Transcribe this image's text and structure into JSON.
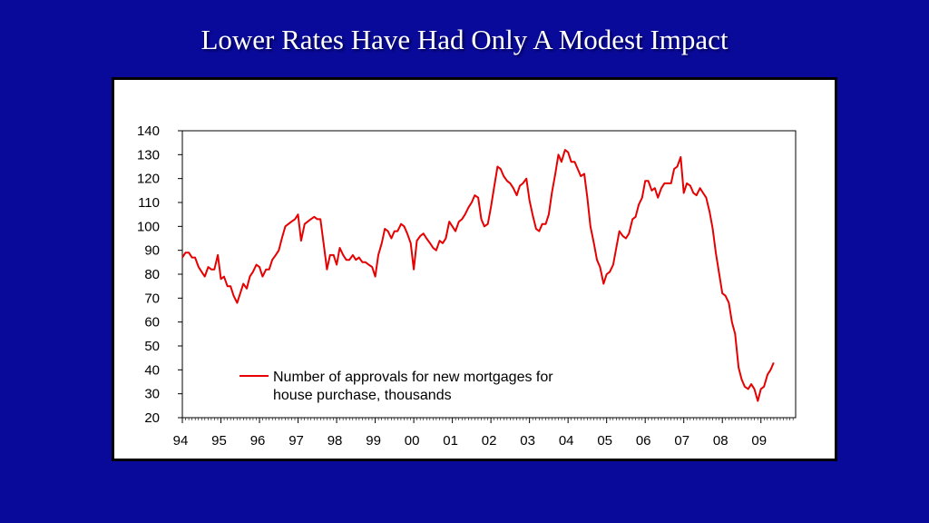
{
  "slide": {
    "title": "Lower Rates Have Had Only A Modest Impact"
  },
  "colors": {
    "background": "#0a0a9a",
    "panel": "#ffffff",
    "series": "#e60000"
  },
  "chart_data": {
    "type": "line",
    "title": "Lower Rates Have Had Only A Modest Impact",
    "xlabel": "",
    "ylabel": "",
    "ylim": [
      20,
      140
    ],
    "yticks": [
      20,
      30,
      40,
      50,
      60,
      70,
      80,
      90,
      100,
      110,
      120,
      130,
      140
    ],
    "xlim": [
      1994.0,
      2009.9
    ],
    "xtick_labels": [
      "94",
      "95",
      "96",
      "97",
      "98",
      "99",
      "00",
      "01",
      "02",
      "03",
      "04",
      "05",
      "06",
      "07",
      "08",
      "09"
    ],
    "grid": false,
    "legend_position": "bottom-center",
    "series": [
      {
        "name": "Number of approvals for new mortgages for house purchase, thousands",
        "legend_lines": [
          "Number of approvals for new mortgages for",
          "house purchase, thousands"
        ],
        "color": "#e60000",
        "points": [
          [
            1994.0,
            87
          ],
          [
            1994.08,
            89
          ],
          [
            1994.17,
            89
          ],
          [
            1994.25,
            87
          ],
          [
            1994.33,
            87
          ],
          [
            1994.42,
            83
          ],
          [
            1994.5,
            81
          ],
          [
            1994.58,
            79
          ],
          [
            1994.67,
            83
          ],
          [
            1994.75,
            82
          ],
          [
            1994.83,
            82
          ],
          [
            1994.92,
            88
          ],
          [
            1995.0,
            78
          ],
          [
            1995.08,
            79
          ],
          [
            1995.17,
            75
          ],
          [
            1995.25,
            75
          ],
          [
            1995.33,
            71
          ],
          [
            1995.42,
            68
          ],
          [
            1995.5,
            72
          ],
          [
            1995.58,
            76
          ],
          [
            1995.67,
            74
          ],
          [
            1995.75,
            79
          ],
          [
            1995.83,
            81
          ],
          [
            1995.92,
            84
          ],
          [
            1996.0,
            83
          ],
          [
            1996.08,
            79
          ],
          [
            1996.17,
            82
          ],
          [
            1996.25,
            82
          ],
          [
            1996.33,
            86
          ],
          [
            1996.42,
            88
          ],
          [
            1996.5,
            90
          ],
          [
            1996.58,
            95
          ],
          [
            1996.67,
            100
          ],
          [
            1996.75,
            101
          ],
          [
            1996.83,
            102
          ],
          [
            1996.92,
            103
          ],
          [
            1997.0,
            105
          ],
          [
            1997.08,
            94
          ],
          [
            1997.17,
            101
          ],
          [
            1997.25,
            102
          ],
          [
            1997.33,
            103
          ],
          [
            1997.42,
            104
          ],
          [
            1997.5,
            103
          ],
          [
            1997.58,
            103
          ],
          [
            1997.67,
            92
          ],
          [
            1997.75,
            82
          ],
          [
            1997.83,
            88
          ],
          [
            1997.92,
            88
          ],
          [
            1998.0,
            84
          ],
          [
            1998.08,
            91
          ],
          [
            1998.17,
            88
          ],
          [
            1998.25,
            86
          ],
          [
            1998.33,
            86
          ],
          [
            1998.42,
            88
          ],
          [
            1998.5,
            86
          ],
          [
            1998.58,
            87
          ],
          [
            1998.67,
            85
          ],
          [
            1998.75,
            85
          ],
          [
            1998.83,
            84
          ],
          [
            1998.92,
            83
          ],
          [
            1999.0,
            79
          ],
          [
            1999.08,
            88
          ],
          [
            1999.17,
            93
          ],
          [
            1999.25,
            99
          ],
          [
            1999.33,
            98
          ],
          [
            1999.42,
            95
          ],
          [
            1999.5,
            98
          ],
          [
            1999.58,
            98
          ],
          [
            1999.67,
            101
          ],
          [
            1999.75,
            100
          ],
          [
            1999.83,
            97
          ],
          [
            1999.92,
            93
          ],
          [
            2000.0,
            82
          ],
          [
            2000.08,
            94
          ],
          [
            2000.17,
            96
          ],
          [
            2000.25,
            97
          ],
          [
            2000.33,
            95
          ],
          [
            2000.42,
            93
          ],
          [
            2000.5,
            91
          ],
          [
            2000.58,
            90
          ],
          [
            2000.67,
            94
          ],
          [
            2000.75,
            93
          ],
          [
            2000.83,
            95
          ],
          [
            2000.92,
            102
          ],
          [
            2001.0,
            100
          ],
          [
            2001.08,
            98
          ],
          [
            2001.17,
            102
          ],
          [
            2001.25,
            103
          ],
          [
            2001.33,
            105
          ],
          [
            2001.42,
            108
          ],
          [
            2001.5,
            110
          ],
          [
            2001.58,
            113
          ],
          [
            2001.67,
            112
          ],
          [
            2001.75,
            103
          ],
          [
            2001.83,
            100
          ],
          [
            2001.92,
            101
          ],
          [
            2002.0,
            108
          ],
          [
            2002.08,
            116
          ],
          [
            2002.17,
            125
          ],
          [
            2002.25,
            124
          ],
          [
            2002.33,
            121
          ],
          [
            2002.42,
            119
          ],
          [
            2002.5,
            118
          ],
          [
            2002.58,
            116
          ],
          [
            2002.67,
            113
          ],
          [
            2002.75,
            117
          ],
          [
            2002.83,
            118
          ],
          [
            2002.92,
            120
          ],
          [
            2003.0,
            111
          ],
          [
            2003.08,
            105
          ],
          [
            2003.17,
            99
          ],
          [
            2003.25,
            98
          ],
          [
            2003.33,
            101
          ],
          [
            2003.42,
            101
          ],
          [
            2003.5,
            105
          ],
          [
            2003.58,
            114
          ],
          [
            2003.67,
            122
          ],
          [
            2003.75,
            130
          ],
          [
            2003.83,
            127
          ],
          [
            2003.92,
            132
          ],
          [
            2004.0,
            131
          ],
          [
            2004.08,
            127
          ],
          [
            2004.17,
            127
          ],
          [
            2004.25,
            124
          ],
          [
            2004.33,
            121
          ],
          [
            2004.42,
            122
          ],
          [
            2004.5,
            112
          ],
          [
            2004.58,
            100
          ],
          [
            2004.67,
            93
          ],
          [
            2004.75,
            86
          ],
          [
            2004.83,
            83
          ],
          [
            2004.92,
            76
          ],
          [
            2005.0,
            80
          ],
          [
            2005.08,
            81
          ],
          [
            2005.17,
            84
          ],
          [
            2005.25,
            91
          ],
          [
            2005.33,
            98
          ],
          [
            2005.42,
            96
          ],
          [
            2005.5,
            95
          ],
          [
            2005.58,
            97
          ],
          [
            2005.67,
            103
          ],
          [
            2005.75,
            104
          ],
          [
            2005.83,
            109
          ],
          [
            2005.92,
            112
          ],
          [
            2006.0,
            119
          ],
          [
            2006.08,
            119
          ],
          [
            2006.17,
            115
          ],
          [
            2006.25,
            116
          ],
          [
            2006.33,
            112
          ],
          [
            2006.42,
            116
          ],
          [
            2006.5,
            118
          ],
          [
            2006.58,
            118
          ],
          [
            2006.67,
            118
          ],
          [
            2006.75,
            124
          ],
          [
            2006.83,
            125
          ],
          [
            2006.92,
            129
          ],
          [
            2007.0,
            114
          ],
          [
            2007.08,
            118
          ],
          [
            2007.17,
            117
          ],
          [
            2007.25,
            114
          ],
          [
            2007.33,
            113
          ],
          [
            2007.42,
            116
          ],
          [
            2007.5,
            114
          ],
          [
            2007.58,
            112
          ],
          [
            2007.67,
            106
          ],
          [
            2007.75,
            99
          ],
          [
            2007.83,
            89
          ],
          [
            2007.92,
            80
          ],
          [
            2008.0,
            72
          ],
          [
            2008.08,
            71
          ],
          [
            2008.17,
            68
          ],
          [
            2008.25,
            60
          ],
          [
            2008.33,
            55
          ],
          [
            2008.42,
            41
          ],
          [
            2008.5,
            36
          ],
          [
            2008.58,
            33
          ],
          [
            2008.67,
            32
          ],
          [
            2008.75,
            34
          ],
          [
            2008.83,
            32
          ],
          [
            2008.92,
            27
          ],
          [
            2009.0,
            32
          ],
          [
            2009.08,
            33
          ],
          [
            2009.17,
            38
          ],
          [
            2009.25,
            40
          ],
          [
            2009.33,
            43
          ]
        ]
      }
    ]
  }
}
